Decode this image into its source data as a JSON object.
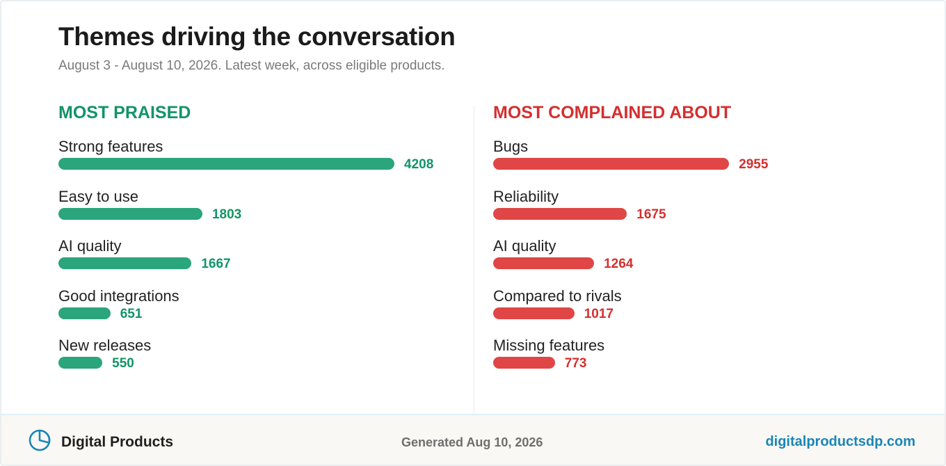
{
  "header": {
    "title": "Themes driving the conversation",
    "subtitle": "August 3 - August 10, 2026. Latest week, across eligible products."
  },
  "colors": {
    "praised": "#2ba57b",
    "praised_text": "#129466",
    "complained": "#e04646",
    "complained_text": "#d42f2f",
    "accent": "#1a86b7"
  },
  "chart_data": [
    {
      "type": "bar",
      "orientation": "horizontal",
      "title": "MOST PRAISED",
      "categories": [
        "Strong features",
        "Easy to use",
        "AI quality",
        "Good integrations",
        "New releases"
      ],
      "values": [
        4208,
        1803,
        1667,
        651,
        550
      ],
      "data_labels": [
        "4208",
        "1803",
        "1667",
        "651",
        "550"
      ],
      "grid": false,
      "xlim": [
        0,
        4208
      ]
    },
    {
      "type": "bar",
      "orientation": "horizontal",
      "title": "MOST COMPLAINED ABOUT",
      "categories": [
        "Bugs",
        "Reliability",
        "AI quality",
        "Compared to rivals",
        "Missing features"
      ],
      "values": [
        2955,
        1675,
        1264,
        1017,
        773
      ],
      "data_labels": [
        "2955",
        "1675",
        "1264",
        "1017",
        "773"
      ],
      "grid": false,
      "xlim": [
        0,
        4208
      ]
    }
  ],
  "footer": {
    "brand_icon": "pie-chart-icon",
    "brand": "Digital Products",
    "generated": "Generated Aug 10, 2026",
    "site": "digitalproductsdp.com"
  }
}
